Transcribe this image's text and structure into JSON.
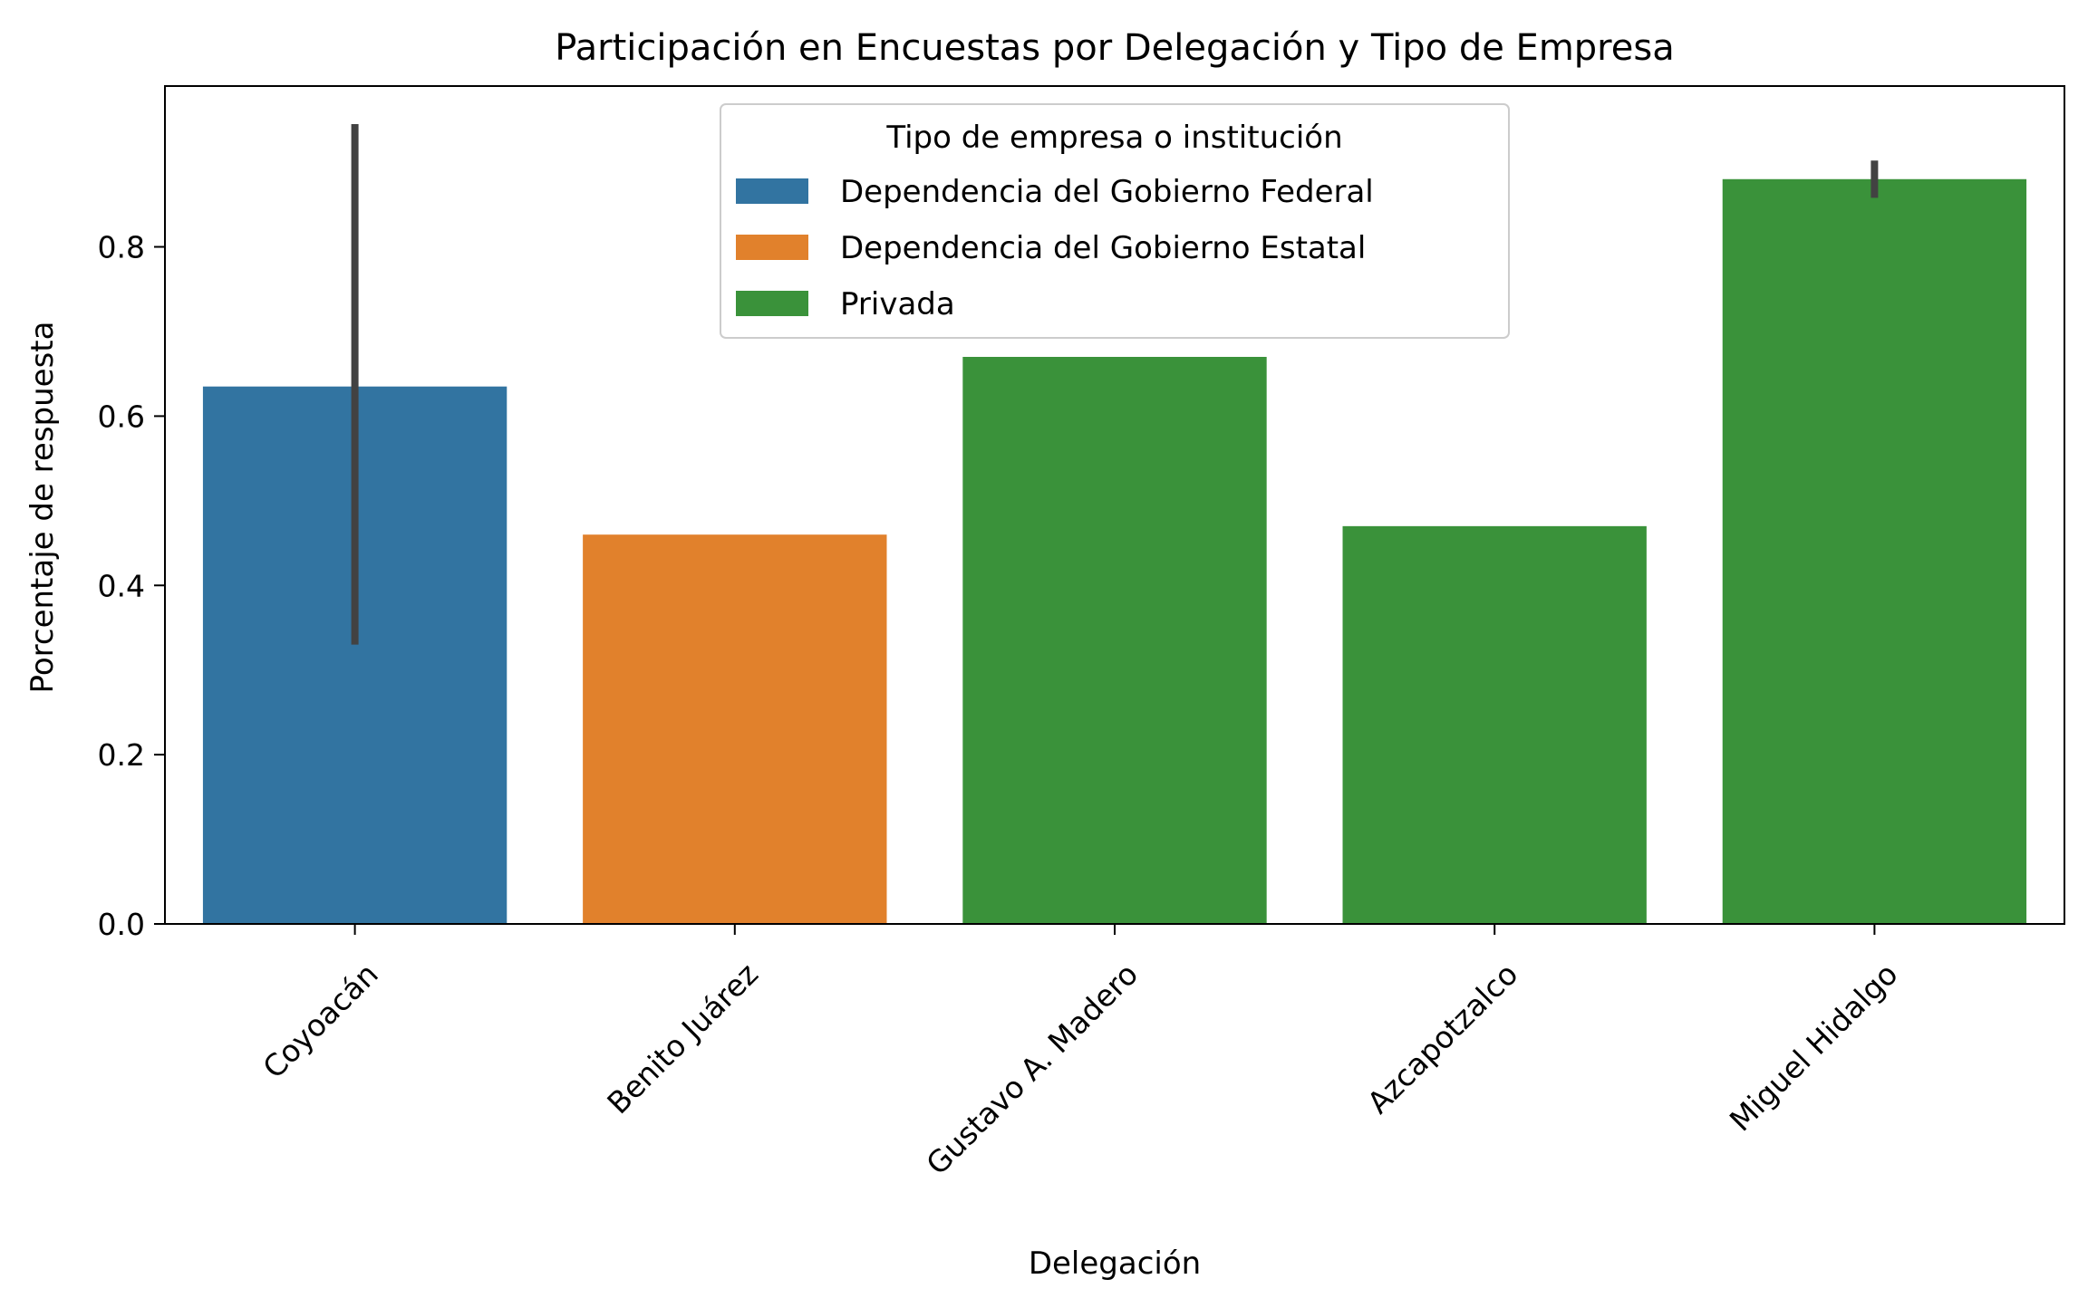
{
  "chart_data": {
    "type": "bar",
    "title": "Participación en Encuestas por Delegación y Tipo de Empresa",
    "xlabel": "Delegación",
    "ylabel": "Porcentaje de respuesta",
    "ylim": [
      0,
      0.99
    ],
    "yticks": [
      "0.0",
      "0.2",
      "0.4",
      "0.6",
      "0.8"
    ],
    "yticks_values": [
      0.0,
      0.2,
      0.4,
      0.6,
      0.8
    ],
    "grid": false,
    "legend_title": "Tipo de empresa o institución",
    "legend_position": "top-center",
    "categories": [
      "Coyoacán",
      "Benito Juárez",
      "Gustavo A. Madero",
      "Azcapotzalco",
      "Miguel Hidalgo"
    ],
    "series": [
      {
        "name": "Dependencia del Gobierno Federal",
        "color": "#3274a1"
      },
      {
        "name": "Dependencia del Gobierno Estatal",
        "color": "#e1812c"
      },
      {
        "name": "Privada",
        "color": "#3a923a"
      }
    ],
    "bars": [
      {
        "category": "Coyoacán",
        "series": "Dependencia del Gobierno Federal",
        "value": 0.635,
        "error": [
          0.33,
          0.945
        ]
      },
      {
        "category": "Benito Juárez",
        "series": "Dependencia del Gobierno Estatal",
        "value": 0.46,
        "error": null
      },
      {
        "category": "Gustavo A. Madero",
        "series": "Privada",
        "value": 0.67,
        "error": null
      },
      {
        "category": "Azcapotzalco",
        "series": "Privada",
        "value": 0.47,
        "error": null
      },
      {
        "category": "Miguel Hidalgo",
        "series": "Privada",
        "value": 0.88,
        "error": [
          0.858,
          0.902
        ]
      }
    ]
  }
}
